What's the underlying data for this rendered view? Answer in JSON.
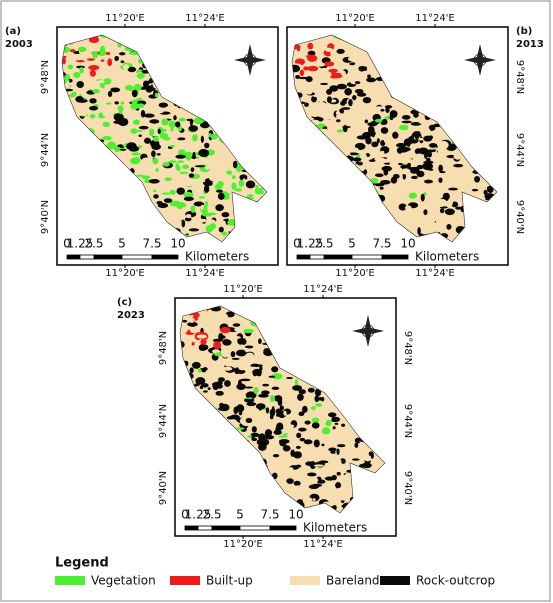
{
  "panels": [
    {
      "label": "(a)",
      "year": "2003",
      "top_ticks": [
        "11°20'E",
        "11°24'E"
      ],
      "bottom_ticks": [
        "11°20'E",
        "11°24'E"
      ],
      "left_ticks": [
        "9°48'N",
        "9°44'N",
        "9°40'N"
      ],
      "scale_labels": [
        "0",
        "1.25",
        "2.5",
        "5",
        "7.5",
        "10"
      ],
      "scale_unit": "Kilometers"
    },
    {
      "label": "(b)",
      "year": "2013",
      "top_ticks": [
        "11°20'E",
        "11°24'E"
      ],
      "bottom_ticks": [
        "11°20'E",
        "11°24'E"
      ],
      "right_ticks": [
        "9°48'N",
        "9°44'N",
        "9°40'N"
      ],
      "scale_labels": [
        "0",
        "1.25",
        "2.5",
        "5",
        "7.5",
        "10"
      ],
      "scale_unit": "Kilometers"
    },
    {
      "label": "(c)",
      "year": "2023",
      "top_ticks": [
        "11°20'E",
        "11°24'E"
      ],
      "bottom_ticks": [
        "11°20'E",
        "11°24'E"
      ],
      "left_ticks": [
        "9°48'N",
        "9°44'N",
        "9°40'N"
      ],
      "right_ticks": [
        "9°48'N",
        "9°44'N",
        "9°40'N"
      ],
      "scale_labels": [
        "0",
        "1.25",
        "2.5",
        "5",
        "7.5",
        "10"
      ],
      "scale_unit": "Kilometers"
    }
  ],
  "legend": {
    "title": "Legend",
    "items": [
      {
        "label": "Vegetation",
        "color": "#4cf02e"
      },
      {
        "label": "Built-up",
        "color": "#ee1c1c"
      },
      {
        "label": "Bareland",
        "color": "#f7deb0"
      },
      {
        "label": "Rock-outcrop",
        "color": "#0a0a0a"
      }
    ]
  }
}
